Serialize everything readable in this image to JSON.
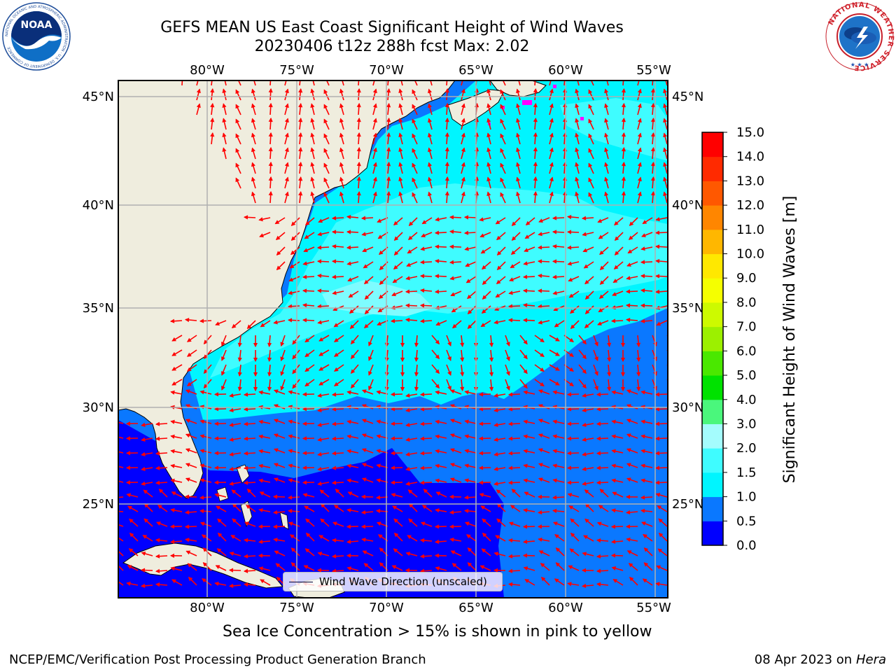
{
  "header": {
    "title_line1": "GEFS MEAN US East Coast Significant Height of Wind Waves",
    "title_line2": "20230406 t12z 288h fcst   Max: 2.02"
  },
  "logos": {
    "left": "NOAA",
    "left_ring_text": "NATIONAL OCEANIC AND ATMOSPHERIC ADMINISTRATION · U.S. DEPARTMENT OF COMMERCE",
    "right_ring_text": "NATIONAL WEATHER SERVICE"
  },
  "map": {
    "lon_labels": [
      "80°W",
      "75°W",
      "70°W",
      "65°W",
      "60°W",
      "55°W"
    ],
    "lat_labels": [
      "45°N",
      "40°N",
      "35°N",
      "30°N",
      "25°N"
    ],
    "legend_label": "Wind Wave Direction (unscaled)",
    "arrow_color": "#ff0000",
    "land_color": "#efedde"
  },
  "colorbar": {
    "label": "Significant Height of Wind Waves [m]",
    "ticks": [
      "0.0",
      "0.5",
      "1.0",
      "1.5",
      "2.0",
      "3.0",
      "4.0",
      "5.0",
      "6.0",
      "7.0",
      "8.0",
      "9.0",
      "10.0",
      "11.0",
      "12.0",
      "13.0",
      "14.0",
      "15.0"
    ],
    "colors": [
      "#0000ff",
      "#0a78ff",
      "#00f5ff",
      "#3ffcff",
      "#a4fcfd",
      "#4af77c",
      "#00e200",
      "#4ae800",
      "#9cf000",
      "#cdfa00",
      "#f5ff00",
      "#ffe800",
      "#ffb700",
      "#ff8600",
      "#ff5800",
      "#ff2a00",
      "#ff0000"
    ]
  },
  "caption": "Sea Ice Concentration > 15% is shown in pink to yellow",
  "footer": {
    "left": "NCEP/EMC/Verification Post Processing Product Generation Branch",
    "right_date": "08 Apr 2023 on ",
    "right_host": "Hera"
  }
}
